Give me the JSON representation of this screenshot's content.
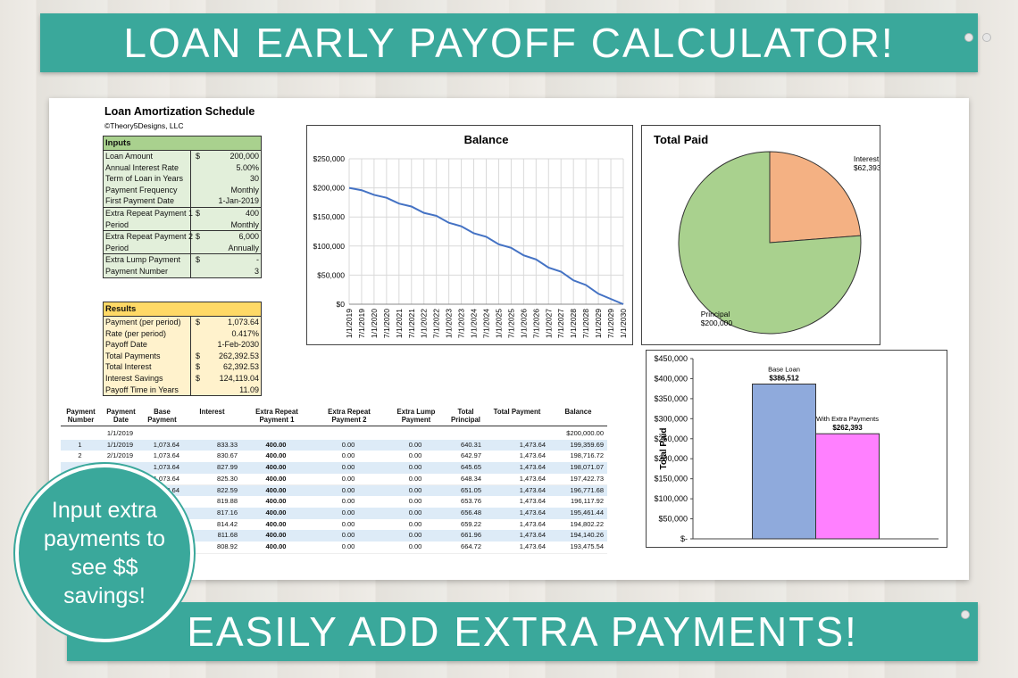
{
  "banner_top": "LOAN EARLY PAYOFF CALCULATOR!",
  "banner_bottom": "EASILY ADD EXTRA PAYMENTS!",
  "badge": "Input extra payments to see $$ savings!",
  "sheet": {
    "title": "Loan Amortization Schedule",
    "copyright": "©Theory5Designs, LLC"
  },
  "inputs": {
    "heading": "Inputs",
    "groups": [
      [
        [
          "Loan Amount",
          "$",
          "200,000"
        ],
        [
          "Annual Interest Rate",
          null,
          "5.00%"
        ],
        [
          "Term of Loan in Years",
          null,
          "30"
        ],
        [
          "Payment Frequency",
          null,
          "Monthly"
        ],
        [
          "First Payment Date",
          null,
          "1-Jan-2019"
        ]
      ],
      [
        [
          "Extra Repeat Payment 1",
          "$",
          "400"
        ],
        [
          "Period",
          null,
          "Monthly"
        ]
      ],
      [
        [
          "Extra Repeat Payment 2",
          "$",
          "6,000"
        ],
        [
          "Period",
          null,
          "Annually"
        ]
      ],
      [
        [
          "Extra Lump Payment",
          "$",
          "-"
        ],
        [
          "Payment Number",
          null,
          "3"
        ]
      ]
    ]
  },
  "results": {
    "heading": "Results",
    "groups": [
      [
        [
          "Payment (per period)",
          "$",
          "1,073.64"
        ],
        [
          "Rate (per period)",
          null,
          "0.417%"
        ],
        [
          "Payoff Date",
          null,
          "1-Feb-2030"
        ],
        [
          "Total Payments",
          "$",
          "262,392.53"
        ],
        [
          "Total Interest",
          "$",
          "62,392.53"
        ],
        [
          "Interest Savings",
          "$",
          "124,119.04"
        ],
        [
          "Payoff Time in Years",
          null,
          "11.09"
        ]
      ]
    ]
  },
  "table": {
    "headers": [
      "Payment Number",
      "Payment Date",
      "Base Payment",
      "Interest",
      "Extra Repeat Payment 1",
      "Extra Repeat Payment 2",
      "Extra Lump Payment",
      "Total Principal",
      "Total Payment",
      "Balance"
    ],
    "rows": [
      [
        null,
        "1/1/2019",
        null,
        null,
        null,
        null,
        null,
        null,
        null,
        "$200,000.00"
      ],
      [
        "1",
        "1/1/2019",
        "1,073.64",
        "833.33",
        "400.00",
        "0.00",
        "0.00",
        "640.31",
        "1,473.64",
        "199,359.69"
      ],
      [
        "2",
        "2/1/2019",
        "1,073.64",
        "830.67",
        "400.00",
        "0.00",
        "0.00",
        "642.97",
        "1,473.64",
        "198,716.72"
      ],
      [
        null,
        null,
        "1,073.64",
        "827.99",
        "400.00",
        "0.00",
        "0.00",
        "645.65",
        "1,473.64",
        "198,071.07"
      ],
      [
        null,
        null,
        "1,073.64",
        "825.30",
        "400.00",
        "0.00",
        "0.00",
        "648.34",
        "1,473.64",
        "197,422.73"
      ],
      [
        null,
        null,
        "1,073.64",
        "822.59",
        "400.00",
        "0.00",
        "0.00",
        "651.05",
        "1,473.64",
        "196,771.68"
      ],
      [
        null,
        null,
        null,
        "819.88",
        "400.00",
        "0.00",
        "0.00",
        "653.76",
        "1,473.64",
        "196,117.92"
      ],
      [
        null,
        null,
        null,
        "817.16",
        "400.00",
        "0.00",
        "0.00",
        "656.48",
        "1,473.64",
        "195,461.44"
      ],
      [
        null,
        null,
        null,
        "814.42",
        "400.00",
        "0.00",
        "0.00",
        "659.22",
        "1,473.64",
        "194,802.22"
      ],
      [
        null,
        null,
        null,
        "811.68",
        "400.00",
        "0.00",
        "0.00",
        "661.96",
        "1,473.64",
        "194,140.26"
      ],
      [
        null,
        null,
        null,
        "808.92",
        "400.00",
        "0.00",
        "0.00",
        "664.72",
        "1,473.64",
        "193,475.54"
      ]
    ]
  },
  "chart_data": [
    {
      "type": "line",
      "title": "Balance",
      "color": "#4472c4",
      "grid": true,
      "categories": [
        "1/1/2019",
        "7/1/2019",
        "1/1/2020",
        "7/1/2020",
        "1/1/2021",
        "7/1/2021",
        "1/1/2022",
        "7/1/2022",
        "1/1/2023",
        "7/1/2023",
        "1/1/2024",
        "7/1/2024",
        "1/1/2025",
        "7/1/2025",
        "1/1/2026",
        "7/1/2026",
        "1/1/2027",
        "7/1/2027",
        "1/1/2028",
        "7/1/2028",
        "1/1/2029",
        "7/1/2029",
        "1/1/2030"
      ],
      "values": [
        200000,
        196000,
        188000,
        183000,
        173000,
        168000,
        157000,
        152000,
        140000,
        134000,
        122000,
        116000,
        103000,
        97000,
        84000,
        77000,
        63000,
        56000,
        41000,
        33000,
        18000,
        9000,
        0
      ],
      "ylim": [
        0,
        250000
      ],
      "yticks": [
        {
          "value": 0,
          "label": "$0"
        },
        {
          "value": 50000,
          "label": "$50,000"
        },
        {
          "value": 100000,
          "label": "$100,000"
        },
        {
          "value": 150000,
          "label": "$150,000"
        },
        {
          "value": 200000,
          "label": "$200,000"
        },
        {
          "value": 250000,
          "label": "$250,000"
        }
      ]
    },
    {
      "type": "pie",
      "title": "Total Paid",
      "categories": [
        "Interest",
        "Principal"
      ],
      "values": [
        62393,
        200000
      ],
      "value_labels": [
        "$62,393",
        "$200,000"
      ],
      "colors": [
        "#f4b183",
        "#a9d18e"
      ]
    },
    {
      "type": "bar",
      "y_label": "Total Paid",
      "categories": [
        "Base Loan",
        "With Extra Payments"
      ],
      "values": [
        386512,
        262393
      ],
      "value_labels": [
        "$386,512",
        "$262,393"
      ],
      "colors": [
        "#8faadc",
        "#ff80ff"
      ],
      "ylim": [
        0,
        450000
      ],
      "yticks": [
        {
          "value": 0,
          "label": "$-"
        },
        {
          "value": 50000,
          "label": "$50,000"
        },
        {
          "value": 100000,
          "label": "$100,000"
        },
        {
          "value": 150000,
          "label": "$150,000"
        },
        {
          "value": 200000,
          "label": "$200,000"
        },
        {
          "value": 250000,
          "label": "$250,000"
        },
        {
          "value": 300000,
          "label": "$300,000"
        },
        {
          "value": 350000,
          "label": "$350,000"
        },
        {
          "value": 400000,
          "label": "$400,000"
        },
        {
          "value": 450000,
          "label": "$450,000"
        }
      ]
    }
  ]
}
